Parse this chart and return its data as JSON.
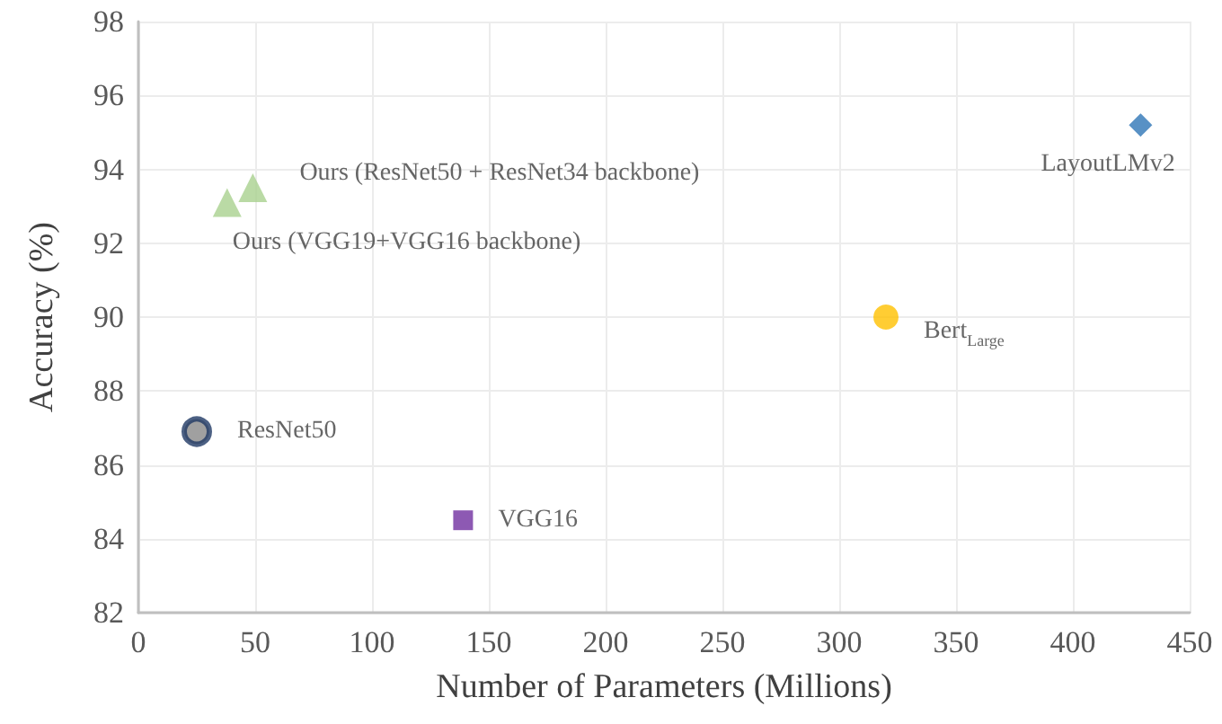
{
  "chart_data": {
    "type": "scatter",
    "xlabel": "Number of Parameters (Millions)",
    "ylabel": "Accuracy (%)",
    "xlim": [
      0,
      450
    ],
    "xticks": [
      0,
      50,
      100,
      150,
      200,
      250,
      300,
      350,
      400,
      450
    ],
    "ylim": [
      82,
      98
    ],
    "yticks": [
      82,
      84,
      86,
      88,
      90,
      92,
      94,
      96,
      98
    ],
    "grid": true,
    "legend": false,
    "series": [
      {
        "name": "Ours (VGG19+VGG16 backbone)",
        "color": "#a9d18e",
        "marker": "triangle",
        "x": [
          38
        ],
        "values": [
          93.1
        ]
      },
      {
        "name": "Ours (ResNet50 + ResNet34 backbone)",
        "color": "#a9d18e",
        "marker": "triangle",
        "x": [
          49
        ],
        "values": [
          93.5
        ]
      },
      {
        "name": "ResNet50",
        "color": "#1f3864",
        "marker": "circle",
        "x": [
          25
        ],
        "values": [
          86.9
        ]
      },
      {
        "name": "VGG16",
        "color": "#7030a0",
        "marker": "square",
        "x": [
          139
        ],
        "values": [
          84.5
        ]
      },
      {
        "name": "Bert$_{Large}$",
        "color": "#ffc000",
        "marker": "circle",
        "x": [
          320
        ],
        "values": [
          90
        ]
      },
      {
        "name": "LayoutLMv2",
        "color": "#2e75b6",
        "marker": "diamond",
        "x": [
          429
        ],
        "values": [
          95.2
        ]
      }
    ]
  }
}
